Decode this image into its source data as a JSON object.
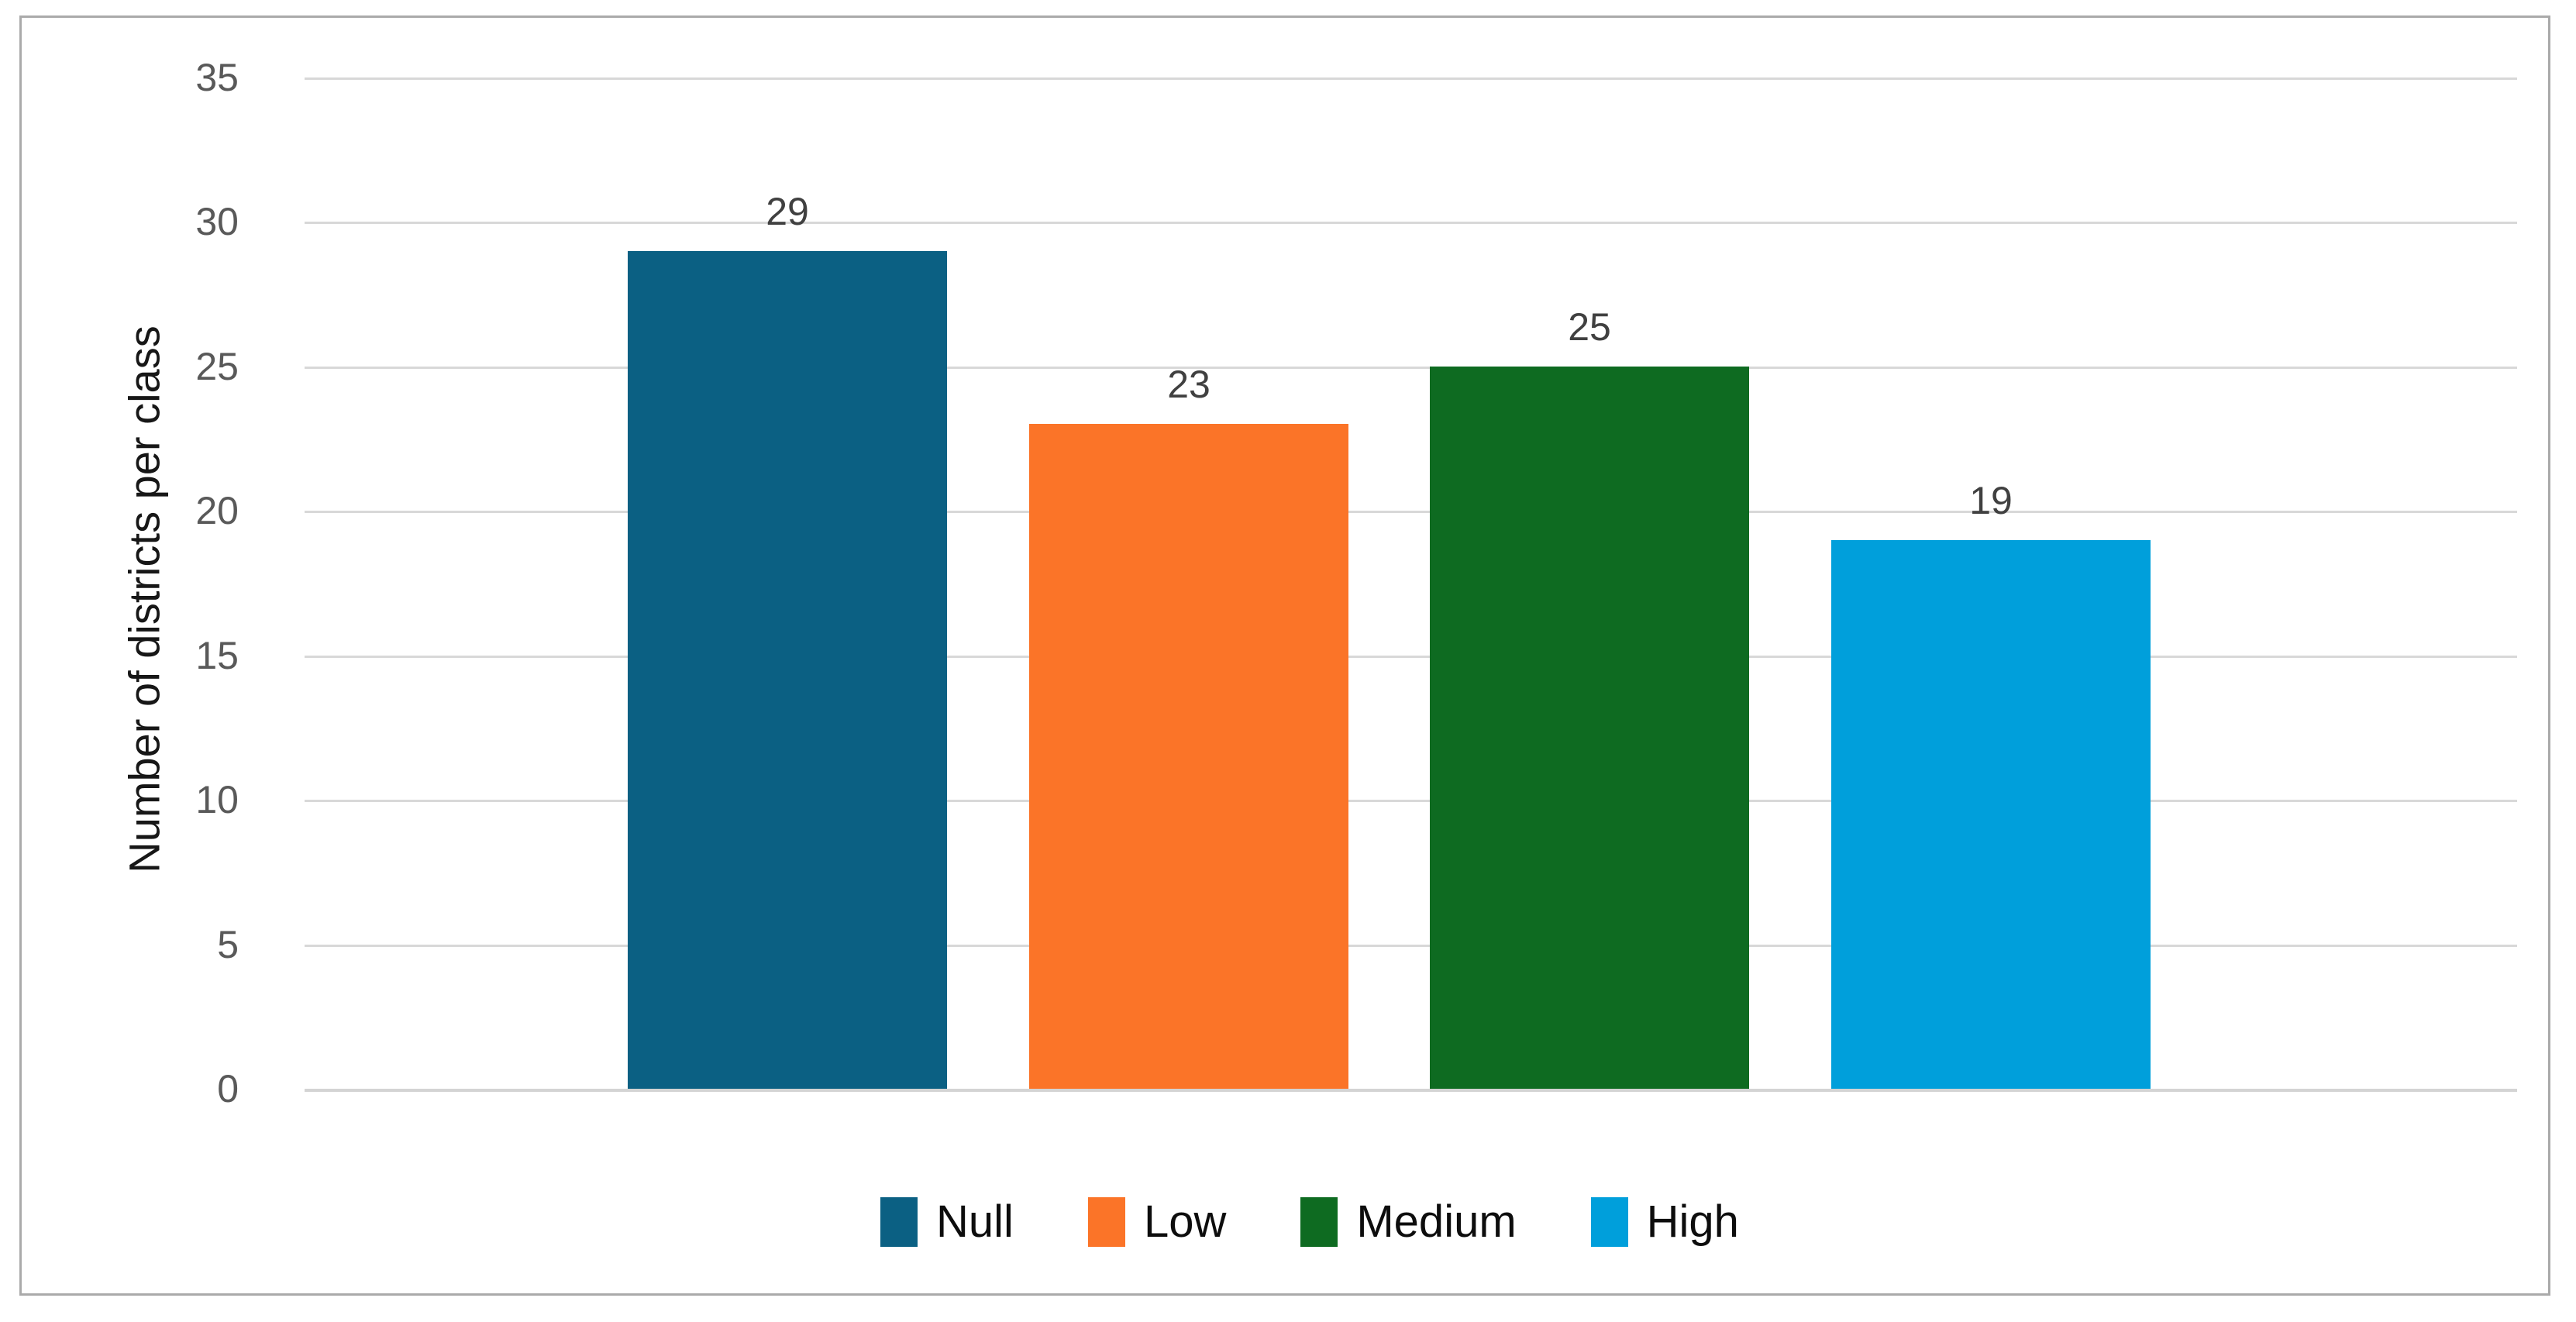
{
  "chart_data": {
    "type": "bar",
    "categories": [
      "Null",
      "Low",
      "Medium",
      "High"
    ],
    "values": [
      29,
      23,
      25,
      19
    ],
    "series_colors": [
      "#0B6083",
      "#FB7428",
      "#0E6B21",
      "#009FDB"
    ],
    "title": "",
    "xlabel": "",
    "ylabel": "Number of districts per class",
    "ylim": [
      0,
      35
    ],
    "yticks": [
      0,
      5,
      10,
      15,
      20,
      25,
      30,
      35
    ],
    "grid": "horizontal",
    "data_labels_shown": true,
    "legend": {
      "position": "bottom",
      "entries": [
        {
          "label": "Null",
          "color": "#0B6083"
        },
        {
          "label": "Low",
          "color": "#FB7428"
        },
        {
          "label": "Medium",
          "color": "#0E6B21"
        },
        {
          "label": "High",
          "color": "#009FDB"
        }
      ]
    }
  },
  "colors": {
    "background": "#FFFFFF",
    "frame_border": "#AAAAAA",
    "gridline": "#D8D8D8",
    "tick_text": "#595959",
    "data_label_text": "#404040",
    "axis_title_text": "#171717"
  }
}
